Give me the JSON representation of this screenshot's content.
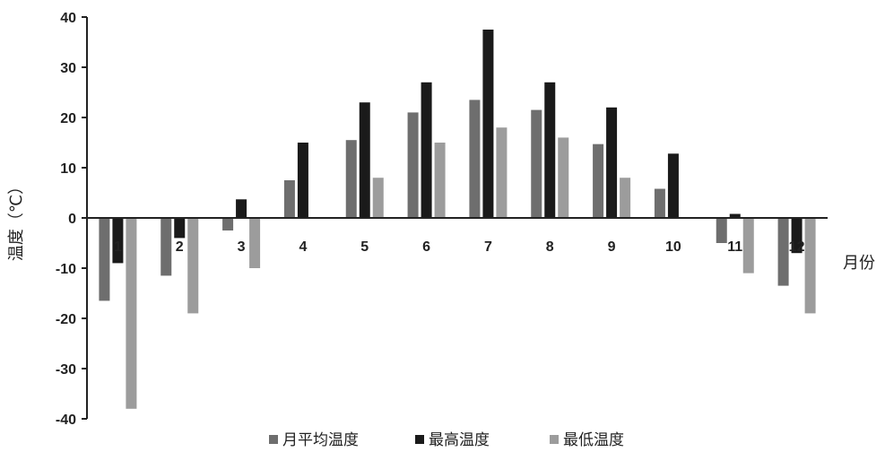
{
  "chart_data": {
    "type": "bar",
    "categories": [
      "1",
      "2",
      "3",
      "4",
      "5",
      "6",
      "7",
      "8",
      "9",
      "10",
      "11",
      "12"
    ],
    "series": [
      {
        "name": "月平均温度",
        "values": [
          -16.5,
          -11.5,
          -2.5,
          7.5,
          15.5,
          21,
          23.5,
          21.5,
          14.7,
          5.8,
          -5,
          -13.5
        ],
        "color": "#6e6e6e"
      },
      {
        "name": "最高温度",
        "values": [
          -9,
          -4,
          3.7,
          15,
          23,
          27,
          37.5,
          27,
          22,
          12.8,
          0.8,
          -7
        ],
        "color": "#1a1a1a"
      },
      {
        "name": "最低温度",
        "values": [
          -38,
          -19,
          -10,
          0,
          8,
          15,
          18,
          16,
          8,
          0,
          -11,
          -19
        ],
        "color": "#9c9c9c"
      }
    ],
    "xlabel": "月份",
    "ylabel": "温度（℃）",
    "ylim": [
      -40,
      40
    ],
    "yticks": [
      -40,
      -30,
      -20,
      -10,
      0,
      10,
      20,
      30,
      40
    ],
    "grid": false,
    "legend_position": "bottom"
  }
}
